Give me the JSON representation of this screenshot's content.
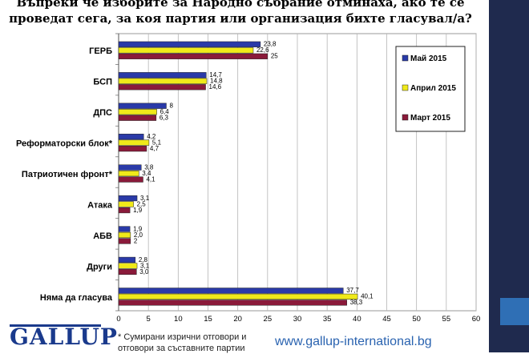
{
  "title_lines": [
    "Въпреки че изборите за Народно събрание отминаха, ако те се",
    "проведат сега, за коя партия или организация бихте гласувал/а?"
  ],
  "footnote": "* Сумирани изрични отговори и отговори за съставните партии",
  "website": "www.gallup-international.bg",
  "logo_text": "GALLUP",
  "chart_data": {
    "type": "bar",
    "orientation": "horizontal",
    "categories": [
      "ГЕРБ",
      "БСП",
      "ДПС",
      "Реформаторски блок*",
      "Патриотичен фронт*",
      "Атака",
      "АБВ",
      "Други",
      "Няма да гласува"
    ],
    "series": [
      {
        "name": "Май 2015",
        "color": "#2a3aa8",
        "values": [
          23.8,
          14.7,
          8,
          4.2,
          3.8,
          3.1,
          1.9,
          2.8,
          37.7
        ],
        "labels": [
          "23,8",
          "14,7",
          "8",
          "4,2",
          "3,8",
          "3,1",
          "1,9",
          "2,8",
          "37,7"
        ]
      },
      {
        "name": "Април 2015",
        "color": "#f0ea1a",
        "values": [
          22.6,
          14.8,
          6.4,
          5.1,
          3.4,
          2.5,
          2.0,
          3.1,
          40.1
        ],
        "labels": [
          "22,6",
          "14,8",
          "6,4",
          "5,1",
          "3,4",
          "2,5",
          "2,0",
          "3,1",
          "40,1"
        ]
      },
      {
        "name": "Март 2015",
        "color": "#8a1a3a",
        "values": [
          25,
          14.6,
          6.3,
          4.7,
          4.1,
          1.9,
          2,
          3.0,
          38.3
        ],
        "labels": [
          "25",
          "14,6",
          "6,3",
          "4,7",
          "4,1",
          "1,9",
          "2",
          "3,0",
          "38,3"
        ]
      }
    ],
    "xlim": [
      0,
      60
    ],
    "xticks": [
      0,
      5,
      10,
      15,
      20,
      25,
      30,
      35,
      40,
      45,
      50,
      55,
      60
    ],
    "grid": true,
    "legend_position": "right"
  }
}
